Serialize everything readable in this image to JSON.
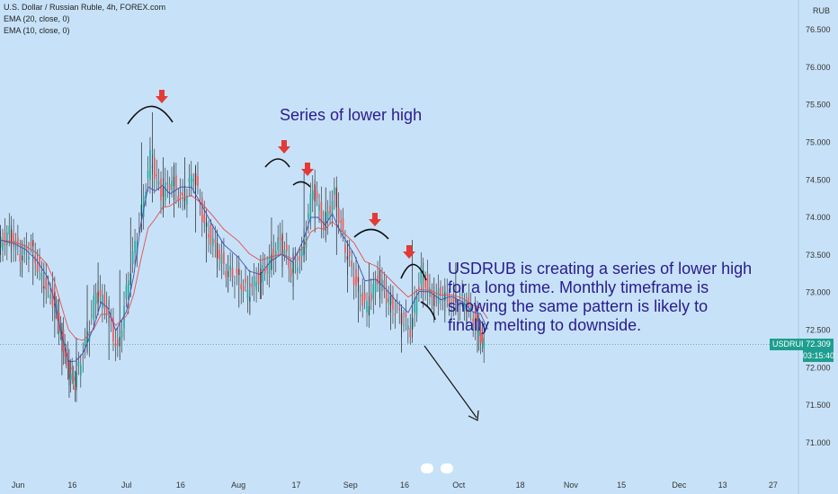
{
  "header": {
    "symbol_title": "U.S. Dollar / Russian Ruble, 4h, FOREX.com",
    "ema20_label": "EMA (20, close, 0)",
    "ema10_label": "EMA (10, close, 0)",
    "currency": "RUB"
  },
  "annotations": {
    "title": "Series of lower high",
    "body": "USDRUB is creating a series of lower high for a long time. Monthly timeframe is showing the same pattern is likely to finally melting to downside."
  },
  "price_label": {
    "symbol": "USDRUB",
    "price": "72.309",
    "countdown": "03:15:40"
  },
  "colors": {
    "background": "#c7e2f8",
    "up_candle": "#26a69a",
    "down_candle": "#ef5350",
    "ema20": "#e14f4f",
    "ema10": "#3f51b5",
    "annotation_text": "#2a1b8f",
    "arrow_marker": "#e53935",
    "price_tag": "#1e9e8f"
  },
  "chart_data": {
    "type": "line",
    "title": "U.S. Dollar / Russian Ruble, 4h, FOREX.com",
    "xlabel": "",
    "ylabel": "RUB",
    "ylim": [
      70.8,
      76.8
    ],
    "yticks": [
      "76.500",
      "76.000",
      "75.500",
      "75.000",
      "74.500",
      "74.000",
      "73.500",
      "73.000",
      "72.500",
      "72.000",
      "71.500",
      "71.000"
    ],
    "x_tick_labels": [
      "Jun",
      "16",
      "Jul",
      "16",
      "Aug",
      "17",
      "Sep",
      "16",
      "Oct",
      "18",
      "Nov",
      "15",
      "Dec",
      "13",
      "27"
    ],
    "x_tick_positions": [
      "2021-06-01",
      "2021-06-16",
      "2021-07-01",
      "2021-07-16",
      "2021-08-01",
      "2021-08-17",
      "2021-09-01",
      "2021-09-16",
      "2021-10-01",
      "2021-10-18",
      "2021-11-01",
      "2021-11-15",
      "2021-12-01",
      "2021-12-13",
      "2021-12-27"
    ],
    "x_range": [
      "2021-05-27",
      "2022-01-03"
    ],
    "series": [
      {
        "values": [
          [
            "2021-05-27",
            73.7
          ],
          [
            "2021-05-31",
            73.6
          ],
          [
            "2021-06-03",
            73.5
          ],
          [
            "2021-06-06",
            73.3
          ],
          [
            "2021-06-09",
            73.0
          ],
          [
            "2021-06-11",
            72.6
          ],
          [
            "2021-06-13",
            72.0
          ],
          [
            "2021-06-15",
            71.7
          ],
          [
            "2021-06-17",
            72.1
          ],
          [
            "2021-06-19",
            72.3
          ],
          [
            "2021-06-22",
            72.9
          ],
          [
            "2021-06-24",
            73.2
          ],
          [
            "2021-06-26",
            72.7
          ],
          [
            "2021-06-28",
            72.2
          ],
          [
            "2021-07-01",
            73.0
          ],
          [
            "2021-07-03",
            73.7
          ],
          [
            "2021-07-05",
            74.6
          ],
          [
            "2021-07-07",
            74.9
          ],
          [
            "2021-07-09",
            74.3
          ],
          [
            "2021-07-11",
            74.5
          ],
          [
            "2021-07-13",
            74.2
          ],
          [
            "2021-07-16",
            74.5
          ],
          [
            "2021-07-19",
            74.4
          ],
          [
            "2021-07-22",
            73.9
          ],
          [
            "2021-07-25",
            73.6
          ],
          [
            "2021-07-28",
            73.4
          ],
          [
            "2021-08-01",
            73.3
          ],
          [
            "2021-08-04",
            73.1
          ],
          [
            "2021-08-07",
            73.2
          ],
          [
            "2021-08-10",
            73.6
          ],
          [
            "2021-08-13",
            73.6
          ],
          [
            "2021-08-16",
            73.3
          ],
          [
            "2021-08-19",
            74.0
          ],
          [
            "2021-08-21",
            74.3
          ],
          [
            "2021-08-23",
            74.0
          ],
          [
            "2021-08-25",
            73.8
          ],
          [
            "2021-08-27",
            74.2
          ],
          [
            "2021-08-29",
            73.6
          ],
          [
            "2021-09-02",
            73.2
          ],
          [
            "2021-09-05",
            72.8
          ],
          [
            "2021-09-08",
            73.2
          ],
          [
            "2021-09-11",
            72.9
          ],
          [
            "2021-09-14",
            72.7
          ],
          [
            "2021-09-17",
            72.6
          ],
          [
            "2021-09-20",
            73.3
          ],
          [
            "2021-09-23",
            73.0
          ],
          [
            "2021-09-26",
            72.8
          ],
          [
            "2021-09-29",
            73.0
          ],
          [
            "2021-10-02",
            72.8
          ],
          [
            "2021-10-05",
            72.6
          ],
          [
            "2021-10-07",
            72.7
          ],
          [
            "2021-10-09",
            72.3
          ]
        ],
        "ohlc": [
          [
            "2021-05-27",
            73.6,
            73.9,
            73.5,
            73.8
          ],
          [
            "2021-05-30",
            73.8,
            73.9,
            73.4,
            73.5
          ],
          [
            "2021-06-02",
            73.5,
            73.7,
            73.2,
            73.6
          ],
          [
            "2021-06-05",
            73.6,
            73.7,
            73.1,
            73.2
          ],
          [
            "2021-06-08",
            73.2,
            73.4,
            72.8,
            72.9
          ],
          [
            "2021-06-11",
            72.9,
            73.0,
            72.4,
            72.5
          ],
          [
            "2021-06-13",
            72.5,
            72.6,
            71.9,
            72.0
          ],
          [
            "2021-06-15",
            72.0,
            72.1,
            71.6,
            71.8
          ],
          [
            "2021-06-17",
            71.8,
            72.4,
            71.7,
            72.3
          ],
          [
            "2021-06-20",
            72.3,
            73.1,
            72.2,
            73.0
          ],
          [
            "2021-06-23",
            73.0,
            73.4,
            72.7,
            72.8
          ],
          [
            "2021-06-26",
            72.8,
            72.9,
            72.1,
            72.2
          ],
          [
            "2021-06-29",
            72.2,
            73.3,
            72.1,
            73.2
          ],
          [
            "2021-07-02",
            73.2,
            74.0,
            73.1,
            73.9
          ],
          [
            "2021-07-05",
            73.9,
            75.0,
            73.8,
            74.8
          ],
          [
            "2021-07-08",
            74.8,
            75.4,
            74.2,
            74.3
          ],
          [
            "2021-07-11",
            74.3,
            74.8,
            74.0,
            74.5
          ],
          [
            "2021-07-14",
            74.5,
            74.7,
            74.0,
            74.2
          ],
          [
            "2021-07-17",
            74.2,
            74.8,
            74.1,
            74.6
          ],
          [
            "2021-07-20",
            74.6,
            74.7,
            73.8,
            73.9
          ],
          [
            "2021-07-23",
            73.9,
            74.0,
            73.4,
            73.6
          ],
          [
            "2021-07-26",
            73.6,
            73.8,
            73.2,
            73.3
          ],
          [
            "2021-07-29",
            73.3,
            73.5,
            73.0,
            73.2
          ],
          [
            "2021-08-01",
            73.2,
            73.4,
            72.8,
            73.0
          ],
          [
            "2021-08-04",
            73.0,
            73.3,
            72.7,
            73.2
          ],
          [
            "2021-08-07",
            73.2,
            73.5,
            73.0,
            73.4
          ],
          [
            "2021-08-10",
            73.4,
            74.0,
            73.3,
            73.7
          ],
          [
            "2021-08-13",
            73.7,
            73.8,
            73.2,
            73.3
          ],
          [
            "2021-08-16",
            73.3,
            73.6,
            72.9,
            73.5
          ],
          [
            "2021-08-19",
            73.5,
            74.6,
            73.4,
            74.4
          ],
          [
            "2021-08-22",
            74.4,
            74.5,
            73.8,
            73.9
          ],
          [
            "2021-08-25",
            73.9,
            74.4,
            73.7,
            74.3
          ],
          [
            "2021-08-28",
            74.3,
            74.4,
            73.5,
            73.6
          ],
          [
            "2021-08-31",
            73.6,
            73.7,
            73.0,
            73.1
          ],
          [
            "2021-09-03",
            73.1,
            73.2,
            72.6,
            72.8
          ],
          [
            "2021-09-06",
            72.8,
            73.4,
            72.7,
            73.2
          ],
          [
            "2021-09-09",
            73.2,
            73.3,
            72.8,
            72.9
          ],
          [
            "2021-09-12",
            72.9,
            73.0,
            72.5,
            72.7
          ],
          [
            "2021-09-15",
            72.7,
            72.8,
            72.2,
            72.5
          ],
          [
            "2021-09-18",
            72.5,
            73.7,
            72.4,
            73.3
          ],
          [
            "2021-09-21",
            73.3,
            73.4,
            72.8,
            72.9
          ],
          [
            "2021-09-24",
            72.9,
            73.2,
            72.6,
            73.0
          ],
          [
            "2021-09-27",
            73.0,
            73.1,
            72.6,
            72.8
          ],
          [
            "2021-09-30",
            72.8,
            73.4,
            72.7,
            72.9
          ],
          [
            "2021-10-03",
            72.9,
            73.0,
            72.5,
            72.6
          ],
          [
            "2021-10-06",
            72.6,
            72.8,
            72.2,
            72.3
          ]
        ]
      },
      {
        "name": "EMA (20, close, 0)",
        "color": "#e14f4f"
      },
      {
        "name": "EMA (10, close, 0)",
        "color": "#3f51b5"
      }
    ],
    "grid": false,
    "legend": "top-left",
    "current_price": 72.309
  }
}
